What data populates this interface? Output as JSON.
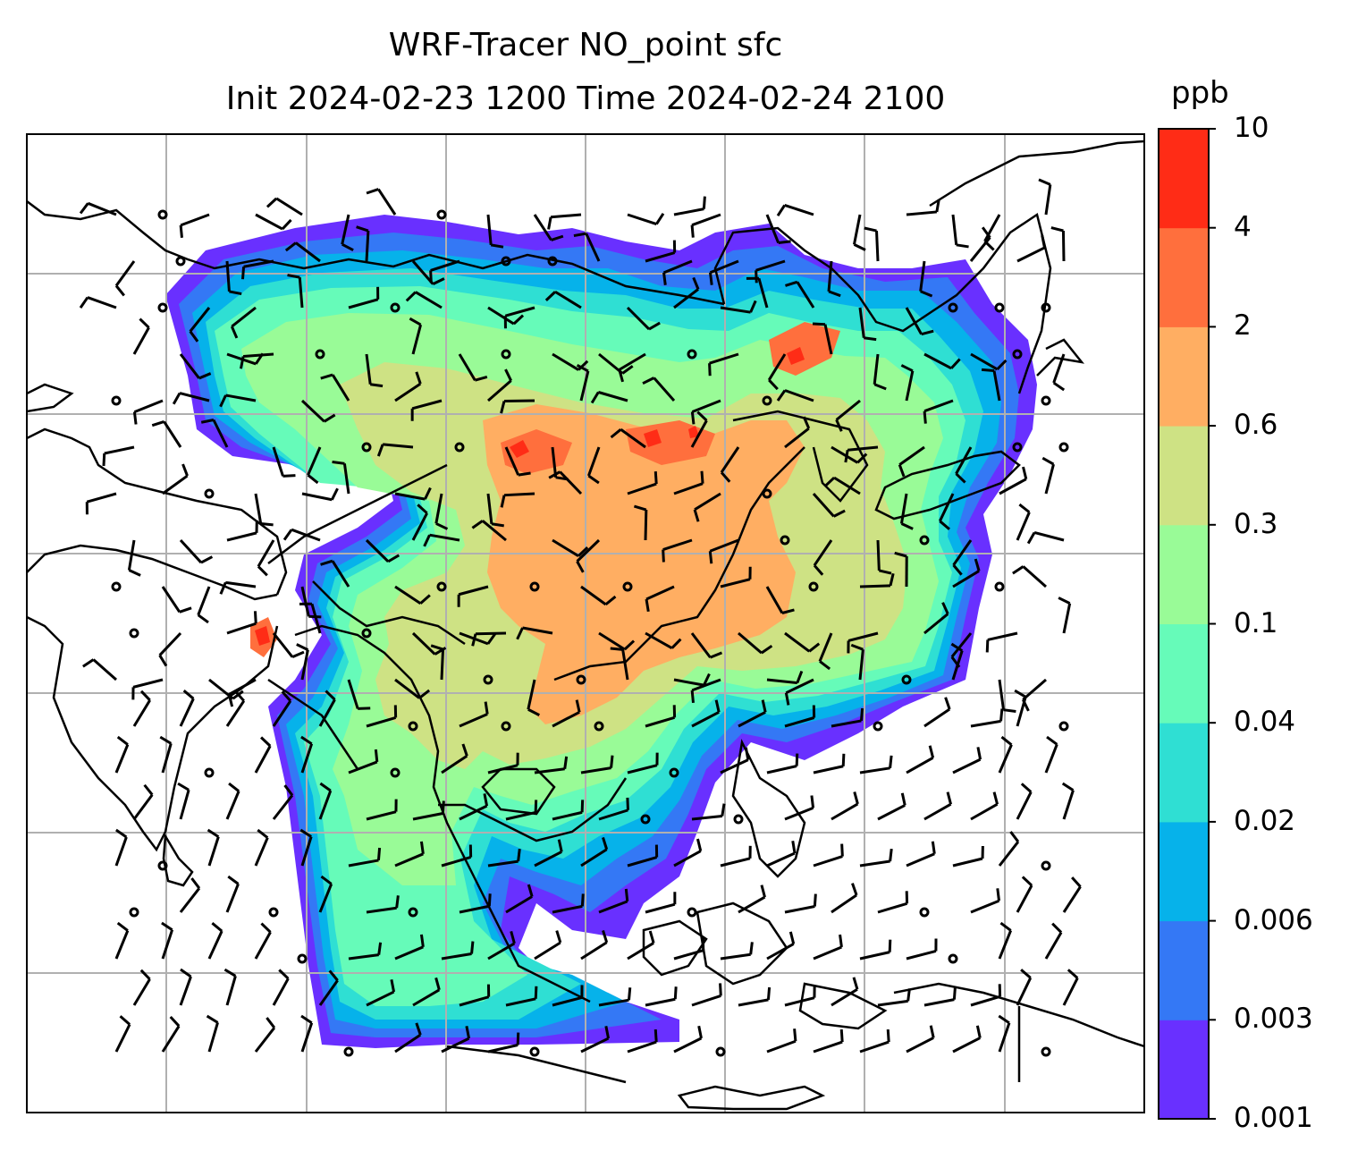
{
  "title": {
    "line1": "WRF-Tracer NO_point sfc",
    "line2": "Init 2024-02-23 1200 Time 2024-02-24 2100"
  },
  "colorbar": {
    "unit": "ppb",
    "levels": [
      "0.001",
      "0.003",
      "0.006",
      "0.02",
      "0.04",
      "0.1",
      "0.3",
      "0.6",
      "2",
      "4",
      "10"
    ],
    "colors": [
      "#6930ff",
      "#3478f5",
      "#06b2ea",
      "#2fdfd3",
      "#66fbb9",
      "#99fb97",
      "#cee284",
      "#ffae62",
      "#ff6f3d",
      "#ff2c16"
    ]
  },
  "map": {
    "type": "filled-contour map with wind barbs and coastlines",
    "gridlines": true,
    "colors": {
      "coastline": "#000000",
      "grid": "#b0b0b0",
      "barb": "#000000"
    }
  }
}
